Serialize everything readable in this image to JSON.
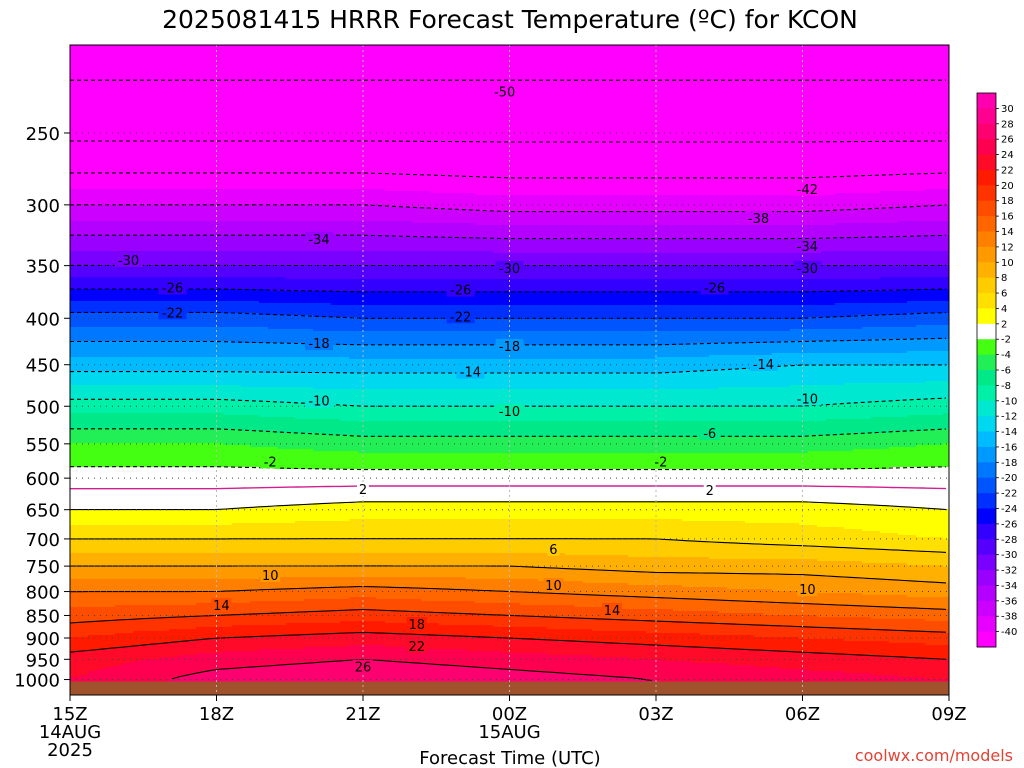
{
  "chart_data": {
    "type": "heatmap",
    "title": "2025081415 HRRR Forecast Temperature (ºC) for KCON",
    "xlabel": "Forecast Time (UTC)",
    "x_ticks": [
      {
        "label": "15Z",
        "sub": [
          "14AUG",
          "2025"
        ]
      },
      {
        "label": "18Z",
        "sub": []
      },
      {
        "label": "21Z",
        "sub": []
      },
      {
        "label": "00Z",
        "sub": [
          "15AUG"
        ]
      },
      {
        "label": "03Z",
        "sub": []
      },
      {
        "label": "06Z",
        "sub": []
      },
      {
        "label": "09Z",
        "sub": []
      }
    ],
    "x_hours": [
      0,
      3,
      6,
      9,
      12,
      15,
      18
    ],
    "xlim": [
      0,
      18
    ],
    "y_ticks": [
      250,
      300,
      350,
      400,
      450,
      500,
      550,
      600,
      650,
      700,
      750,
      800,
      850,
      900,
      950,
      1000
    ],
    "ylim": [
      200,
      1040
    ],
    "y_scale": "log",
    "y_inverted": true,
    "grid": true,
    "colorbar_labels": [
      30,
      28,
      26,
      24,
      22,
      20,
      18,
      16,
      14,
      12,
      10,
      8,
      6,
      4,
      2,
      -2,
      -4,
      -6,
      -8,
      -10,
      -12,
      -14,
      -16,
      -18,
      -20,
      -22,
      -24,
      -26,
      -28,
      -30,
      -32,
      -34,
      -36,
      -38,
      -40
    ],
    "colors": {
      "cold": "#ff00ff",
      "freezing_white": "#ffffff",
      "ground": "#a0522d",
      "freezing_line": "#d02090",
      "contour": "#000000"
    },
    "levels": [
      1000,
      950,
      900,
      850,
      800,
      750,
      700,
      650,
      600,
      550,
      500,
      450,
      400,
      350,
      300,
      250,
      200
    ],
    "times_h": [
      0,
      3,
      6,
      9,
      12,
      15,
      18
    ],
    "temperature_c": [
      [
        24,
        27,
        28,
        27,
        26,
        25,
        24
      ],
      [
        23,
        25,
        26,
        25,
        24,
        23,
        22
      ],
      [
        20,
        22,
        23,
        22,
        21,
        20,
        19
      ],
      [
        17,
        18,
        19,
        18,
        17,
        16,
        15
      ],
      [
        14,
        14,
        15,
        14,
        13,
        12,
        11
      ],
      [
        10,
        10,
        10,
        10,
        9,
        9,
        8
      ],
      [
        6,
        6,
        6,
        6,
        6,
        5,
        4
      ],
      [
        2,
        2,
        3,
        3,
        3,
        3,
        2
      ],
      [
        -1,
        -1,
        -1,
        -1,
        -1,
        -1,
        -1
      ],
      [
        -4,
        -4,
        -5,
        -5,
        -5,
        -5,
        -4
      ],
      [
        -9,
        -9,
        -10,
        -10,
        -10,
        -10,
        -9
      ],
      [
        -15,
        -15,
        -15,
        -15,
        -15,
        -14,
        -14
      ],
      [
        -21,
        -21,
        -22,
        -22,
        -22,
        -22,
        -21
      ],
      [
        -30,
        -30,
        -30,
        -30,
        -30,
        -30,
        -30
      ],
      [
        -38,
        -38,
        -38,
        -39,
        -39,
        -39,
        -38
      ],
      [
        -47,
        -47,
        -47,
        -47,
        -47,
        -47,
        -47
      ],
      [
        -52,
        -52,
        -52,
        -52,
        -52,
        -52,
        -52
      ]
    ],
    "contour_labels": [
      {
        "value": "-50",
        "x": 8.9,
        "p": 225
      },
      {
        "value": "-42",
        "x": 15.1,
        "p": 288
      },
      {
        "value": "-38",
        "x": 14.1,
        "p": 310
      },
      {
        "value": "-34",
        "x": 5.1,
        "p": 327
      },
      {
        "value": "-34",
        "x": 15.1,
        "p": 333
      },
      {
        "value": "-30",
        "x": 1.2,
        "p": 345
      },
      {
        "value": "-30",
        "x": 9.0,
        "p": 352
      },
      {
        "value": "-30",
        "x": 15.1,
        "p": 352
      },
      {
        "value": "-26",
        "x": 2.1,
        "p": 370
      },
      {
        "value": "-26",
        "x": 8.0,
        "p": 372
      },
      {
        "value": "-26",
        "x": 13.2,
        "p": 370
      },
      {
        "value": "-22",
        "x": 2.1,
        "p": 394
      },
      {
        "value": "-22",
        "x": 8.0,
        "p": 398
      },
      {
        "value": "-18",
        "x": 5.1,
        "p": 426
      },
      {
        "value": "-18",
        "x": 9.0,
        "p": 429
      },
      {
        "value": "-14",
        "x": 8.2,
        "p": 458
      },
      {
        "value": "-14",
        "x": 14.2,
        "p": 449
      },
      {
        "value": "-10",
        "x": 5.1,
        "p": 493
      },
      {
        "value": "-10",
        "x": 9.0,
        "p": 506
      },
      {
        "value": "-10",
        "x": 15.1,
        "p": 490
      },
      {
        "value": "-6",
        "x": 13.1,
        "p": 535
      },
      {
        "value": "-2",
        "x": 4.1,
        "p": 575
      },
      {
        "value": "-2",
        "x": 12.1,
        "p": 575
      },
      {
        "value": "2",
        "x": 6.0,
        "p": 617
      },
      {
        "value": "2",
        "x": 13.1,
        "p": 618
      },
      {
        "value": "6",
        "x": 9.9,
        "p": 718
      },
      {
        "value": "10",
        "x": 4.1,
        "p": 767
      },
      {
        "value": "10",
        "x": 9.9,
        "p": 787
      },
      {
        "value": "10",
        "x": 15.1,
        "p": 795
      },
      {
        "value": "14",
        "x": 3.1,
        "p": 828
      },
      {
        "value": "14",
        "x": 11.1,
        "p": 838
      },
      {
        "value": "18",
        "x": 7.1,
        "p": 869
      },
      {
        "value": "22",
        "x": 7.1,
        "p": 918
      },
      {
        "value": "26",
        "x": 6.0,
        "p": 968
      }
    ]
  },
  "credit": "coolwx.com/models"
}
